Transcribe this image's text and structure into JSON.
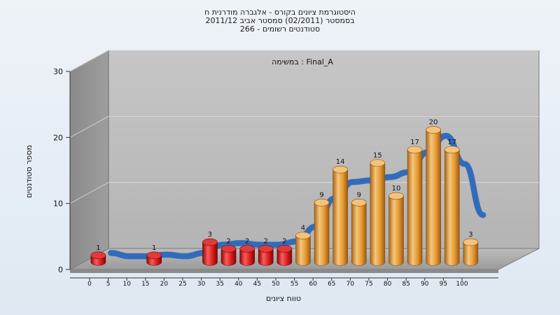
{
  "header": {
    "title_line1": "היסטוגרמת ציונים בקורס - אלגברה מודרנית ח",
    "title_line2": "בסמסטר  (02/2011)  סמסטר אביב 2011/12",
    "title_line3": "סטודנטים רשומים - 266"
  },
  "chart_data": {
    "type": "bar",
    "title": "היסטוגרמת ציונים בקורס - אלגברה מודרנית ח",
    "subtitle": "במשימה : Final_A",
    "xlabel": "טווח ציונים",
    "ylabel": "מספר סטודנטים",
    "ylim": [
      0,
      30
    ],
    "yticks": [
      0,
      10,
      20,
      30
    ],
    "xticks": [
      "0",
      "5",
      "10",
      "15",
      "20",
      "25",
      "30",
      "35",
      "40",
      "45",
      "50",
      "55",
      "60",
      "65",
      "70",
      "75",
      "80",
      "85",
      "90",
      "95",
      "100"
    ],
    "categories": [
      "0",
      "5",
      "10",
      "15",
      "20",
      "25",
      "30",
      "35",
      "40",
      "45",
      "50",
      "55",
      "60",
      "65",
      "70",
      "75",
      "80",
      "85",
      "90",
      "95",
      "100"
    ],
    "values": [
      1,
      0,
      0,
      1,
      0,
      0,
      3,
      2,
      2,
      2,
      2,
      4,
      9,
      14,
      9,
      15,
      10,
      17,
      20,
      17,
      3
    ],
    "failing_color": "#d42020",
    "passing_color": "#e8a23a",
    "curve_color": "#2f6cc0",
    "grid": true,
    "legend": "none"
  }
}
